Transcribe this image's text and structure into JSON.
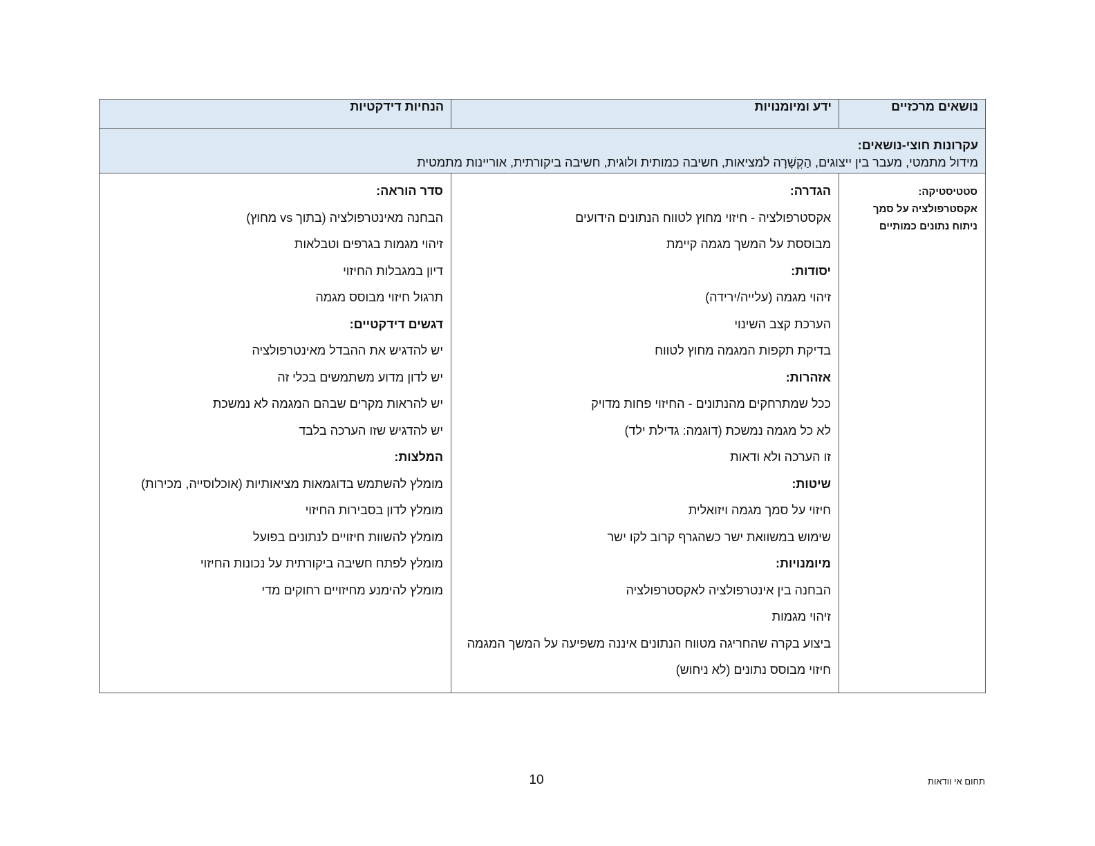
{
  "table": {
    "headers": [
      "נושאים מרכזיים",
      "ידע ומיומנויות",
      "הנחיות דידקטיות"
    ],
    "cross_topic": {
      "title": "עקרונות חוצי-נושאים:",
      "text": "מידול מתמטי, מעבר בין ייצוגים, הַקְשָׁרָה למציאות, חשיבה כמותית ולוגית, חשיבה ביקורתית, אוריינות מתמטית"
    },
    "rows": [
      {
        "topic": [
          "סטטיסטיקה:",
          "אקסטרפולציה על סמך",
          "ניתוח נתונים כמותיים"
        ],
        "knowledge": [
          {
            "heading": "הגדרה:",
            "items": [
              "אקסטרפולציה - חיזוי מחוץ לטווח הנתונים הידועים",
              "מבוססת על המשך מגמה קיימת"
            ]
          },
          {
            "heading": "יסודות:",
            "items": [
              "זיהוי מגמה (עלייה/ירידה)",
              "הערכת קצב השינוי",
              "בדיקת תקפות המגמה מחוץ לטווח"
            ]
          },
          {
            "heading": "אזהרות:",
            "items": [
              "ככל שמתרחקים מהנתונים - החיזוי פחות מדויק",
              "לא כל מגמה נמשכת (דוגמה: גדילת ילד)",
              "זו הערכה ולא ודאות"
            ]
          },
          {
            "heading": "שיטות:",
            "items": [
              "חיזוי על סמך מגמה ויזואלית",
              "שימוש במשוואת ישר כשהגרף קרוב לקו ישר"
            ]
          },
          {
            "heading": "מיומנויות:",
            "items": [
              "הבחנה בין אינטרפולציה לאקסטרפולציה",
              "זיהוי מגמות",
              "ביצוע בקרה שהחריגה מטווח הנתונים איננה משפיעה על המשך המגמה",
              "חיזוי מבוסס נתונים (לא ניחוש)"
            ]
          }
        ],
        "didactics": [
          {
            "heading": "סדר הוראה:",
            "items": [
              "הבחנה מאינטרפולציה (בתוך vs מחוץ)",
              "זיהוי מגמות בגרפים וטבלאות",
              "דיון במגבלות החיזוי",
              "תרגול חיזוי מבוסס מגמה"
            ]
          },
          {
            "heading": "דגשים דידקטיים:",
            "items": [
              "יש להדגיש את ההבדל מאינטרפולציה",
              "יש לדון מדוע משתמשים בכלי זה",
              "יש להראות מקרים שבהם המגמה לא נמשכת",
              "יש להדגיש שזו הערכה בלבד"
            ]
          },
          {
            "heading": "המלצות:",
            "items": [
              "מומלץ להשתמש בדוגמאות מציאותיות (אוכלוסייה, מכירות)",
              "מומלץ לדון בסבירות החיזוי",
              "מומלץ להשוות חיזויים לנתונים בפועל",
              "מומלץ לפתח חשיבה ביקורתית על נכונות החיזוי",
              "מומלץ להימנע מחיזויים רחוקים מדי"
            ]
          }
        ]
      }
    ]
  },
  "footer": {
    "page_number": "10",
    "label": "תחום אי וודאות"
  }
}
